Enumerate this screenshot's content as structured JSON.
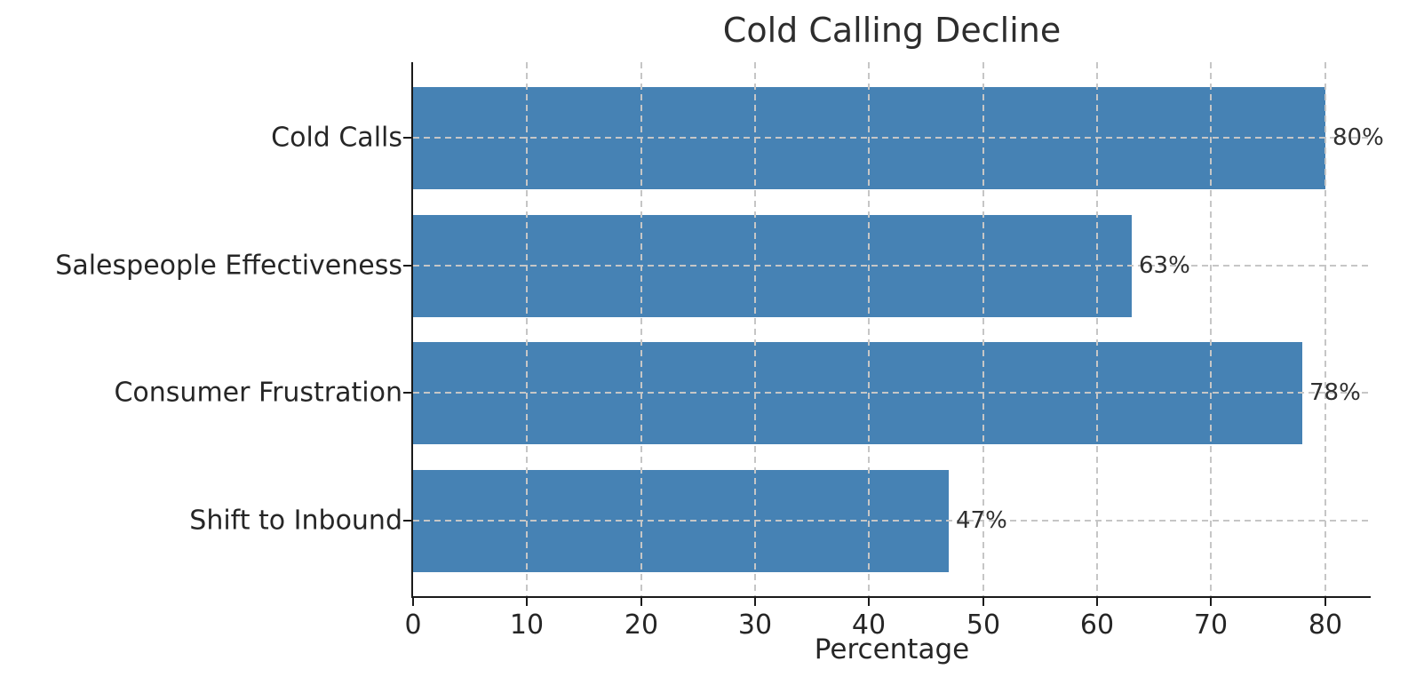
{
  "chart_data": {
    "type": "bar",
    "orientation": "horizontal",
    "title": "Cold Calling Decline",
    "categories": [
      "Cold Calls",
      "Salespeople Effectiveness",
      "Consumer Frustration",
      "Shift to Inbound"
    ],
    "values": [
      80,
      63,
      78,
      47
    ],
    "value_labels": [
      "80%",
      "63%",
      "78%",
      "47%"
    ],
    "xlabel": "Percentage",
    "ylabel": "",
    "xlim": [
      0,
      84
    ],
    "x_ticks": [
      0,
      10,
      20,
      30,
      40,
      50,
      60,
      70,
      80
    ],
    "legend": "none",
    "grid": "dashed x and y gridlines drawn on top of bars",
    "colors": {
      "bar": "#4682b4",
      "grid": "#c6c6c6",
      "spine": "#1a1a1a",
      "text": "#262626",
      "background": "#ffffff"
    }
  }
}
